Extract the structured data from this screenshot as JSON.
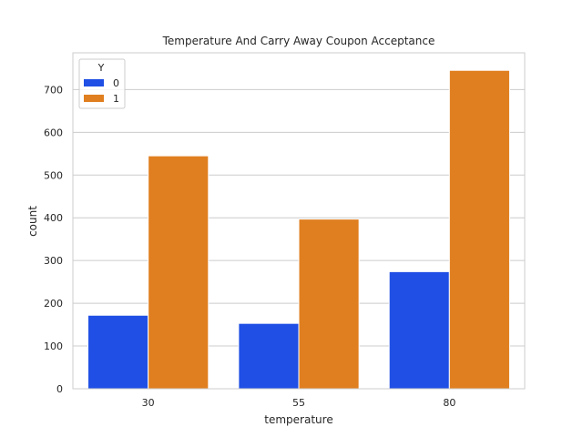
{
  "chart_data": {
    "type": "bar",
    "title": "Temperature And Carry Away Coupon Acceptance",
    "xlabel": "temperature",
    "ylabel": "count",
    "categories": [
      "30",
      "55",
      "80"
    ],
    "series": [
      {
        "name": "0",
        "values": [
          172,
          153,
          274
        ],
        "color": "#1f4fe5"
      },
      {
        "name": "1",
        "values": [
          545,
          397,
          745
        ],
        "color": "#e07f20"
      }
    ],
    "ylim": [
      0,
      786
    ],
    "yticks": [
      0,
      100,
      200,
      300,
      400,
      500,
      600,
      700
    ],
    "grid": true,
    "legend": {
      "title": "Y",
      "placement": "top-left"
    }
  }
}
